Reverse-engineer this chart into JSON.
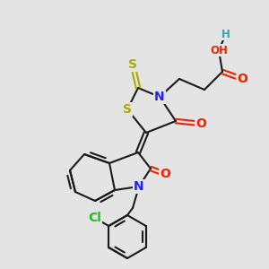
{
  "bg_color": "#e4e4e4",
  "bond_color": "#1a1a1a",
  "bond_width": 1.5,
  "atom_colors": {
    "O": "#ee2200",
    "N": "#2222ee",
    "S": "#aaaa00",
    "Cl": "#22bb22",
    "H": "#22aaaa"
  },
  "font_size": 10,
  "font_size_sm": 8.5
}
